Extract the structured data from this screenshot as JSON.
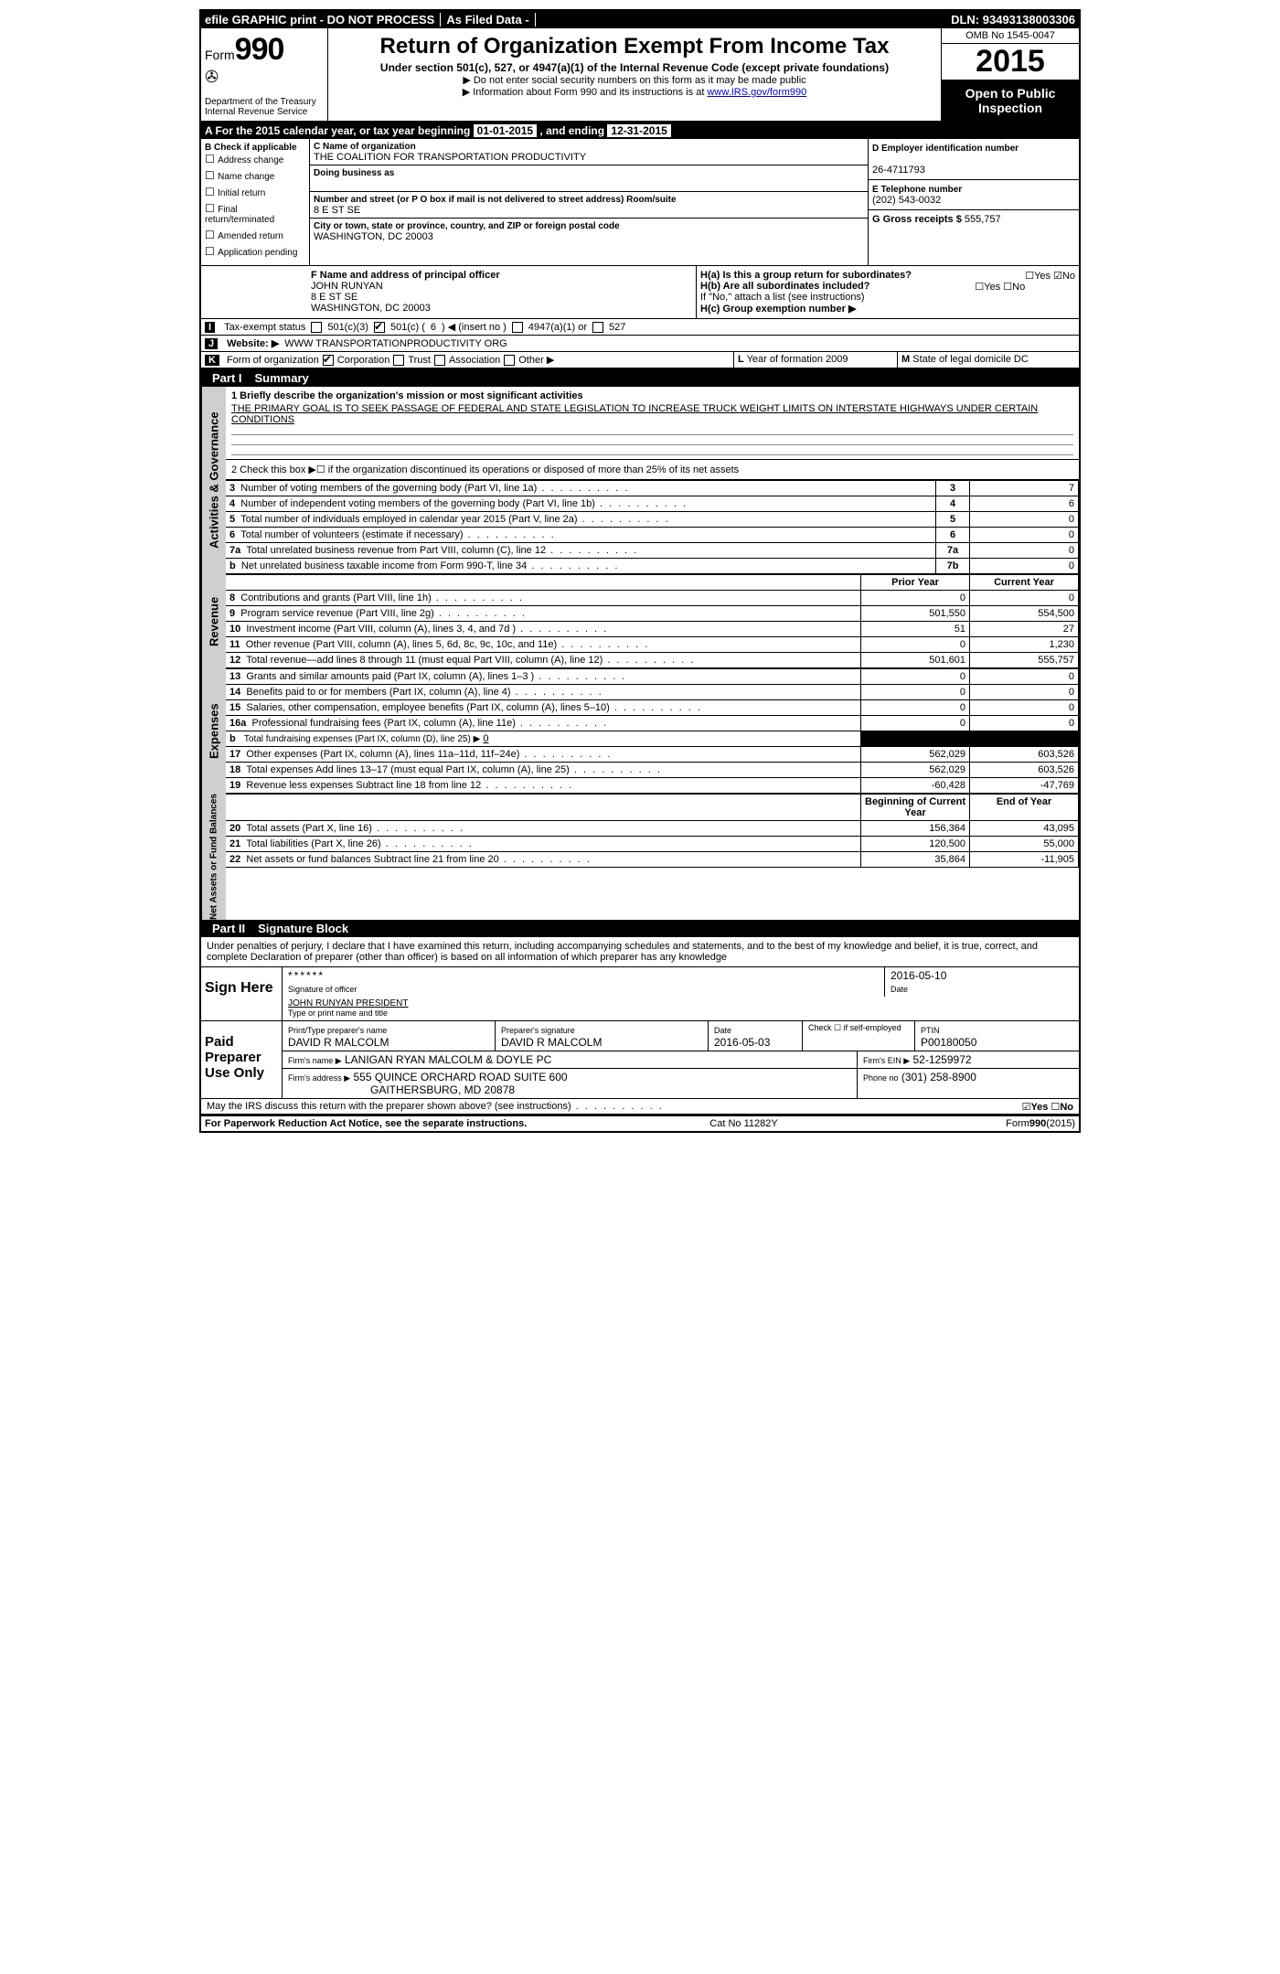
{
  "topbar": {
    "efile": "efile GRAPHIC print - DO NOT PROCESS",
    "asfiled": "As Filed Data -",
    "dln_label": "DLN:",
    "dln": "93493138003306"
  },
  "header": {
    "form_word": "Form",
    "form_no": "990",
    "dept": "Department of the Treasury",
    "irs": "Internal Revenue Service",
    "title": "Return of Organization Exempt From Income Tax",
    "subtitle": "Under section 501(c), 527, or 4947(a)(1) of the Internal Revenue Code (except private foundations)",
    "note1": "▶ Do not enter social security numbers on this form as it may be made public",
    "note2_pre": "▶ Information about Form 990 and its instructions is at ",
    "note2_link": "www.IRS.gov/form990",
    "omb": "OMB No 1545-0047",
    "year": "2015",
    "inspection": "Open to Public Inspection"
  },
  "rowA": {
    "pre": "A  For the 2015 calendar year, or tax year beginning ",
    "begin": "01-01-2015",
    "mid": " , and ending ",
    "end": "12-31-2015"
  },
  "colB": {
    "heading": "B  Check if applicable",
    "items": [
      "Address change",
      "Name change",
      "Initial return",
      "Final return/terminated",
      "Amended return",
      "Application pending"
    ]
  },
  "colC": {
    "name_lbl": "C Name of organization",
    "name": "THE COALITION FOR TRANSPORTATION PRODUCTIVITY",
    "dba_lbl": "Doing business as",
    "dba": "",
    "street_lbl": "Number and street (or P O  box if mail is not delivered to street address)   Room/suite",
    "street": "8 E ST SE",
    "city_lbl": "City or town, state or province, country, and ZIP or foreign postal code",
    "city": "WASHINGTON, DC  20003",
    "officer_lbl": "F    Name and address of principal officer",
    "officer_name": "JOHN RUNYAN",
    "officer_addr1": "8 E ST SE",
    "officer_addr2": "WASHINGTON, DC  20003"
  },
  "colDE": {
    "d_lbl": "D Employer identification number",
    "d_val": "26-4711793",
    "e_lbl": "E Telephone number",
    "e_val": "(202) 543-0032",
    "g_lbl": "G Gross receipts $",
    "g_val": "555,757"
  },
  "H": {
    "ha": "H(a)  Is this a group return for subordinates?",
    "ha_yes": "Yes",
    "ha_no": "No",
    "hb": "H(b)  Are all subordinates included?",
    "hb_yes": "Yes",
    "hb_no": "No",
    "hb_note": "If \"No,\" attach a list  (see instructions)",
    "hc": "H(c)   Group exemption number ▶"
  },
  "rowI": {
    "lead": "I",
    "label": "Tax-exempt status",
    "o1": "501(c)(3)",
    "o2_pre": "501(c) (",
    "o2_num": "6",
    "o2_post": ") ◀ (insert no )",
    "o3": "4947(a)(1) or",
    "o4": "527"
  },
  "rowJ": {
    "lead": "J",
    "label": "Website: ▶",
    "val": "WWW TRANSPORTATIONPRODUCTIVITY ORG"
  },
  "rowK": {
    "lead": "K",
    "label": "Form of organization",
    "opts": [
      "Corporation",
      "Trust",
      "Association",
      "Other ▶"
    ],
    "l_lbl": "L",
    "l_txt": "Year of formation  2009",
    "m_lbl": "M",
    "m_txt": "State of legal domicile   DC"
  },
  "part1": {
    "bar": "Part I",
    "title": "Summary"
  },
  "side": {
    "ag": "Activities & Governance",
    "rev": "Revenue",
    "exp": "Expenses",
    "nab": "Net Assets or Fund Balances"
  },
  "mission": {
    "q": "1 Briefly describe the organization's mission or most significant activities",
    "a": "THE PRIMARY GOAL IS TO SEEK PASSAGE OF FEDERAL AND STATE LEGISLATION TO INCREASE TRUCK WEIGHT LIMITS ON INTERSTATE HIGHWAYS UNDER CERTAIN CONDITIONS"
  },
  "line2": "2  Check this box ▶☐  if the organization discontinued its operations or disposed of more than 25% of its net assets",
  "govlines": [
    {
      "n": "3",
      "t": "Number of voting members of the governing body (Part VI, line 1a)",
      "k": "3",
      "v": "7"
    },
    {
      "n": "4",
      "t": "Number of independent voting members of the governing body (Part VI, line 1b)",
      "k": "4",
      "v": "6"
    },
    {
      "n": "5",
      "t": "Total number of individuals employed in calendar year 2015 (Part V, line 2a)",
      "k": "5",
      "v": "0"
    },
    {
      "n": "6",
      "t": "Total number of volunteers (estimate if necessary)",
      "k": "6",
      "v": "0"
    },
    {
      "n": "7a",
      "t": "Total unrelated business revenue from Part VIII, column (C), line 12",
      "k": "7a",
      "v": "0"
    },
    {
      "n": "b",
      "t": "Net unrelated business taxable income from Form 990-T, line 34",
      "k": "7b",
      "v": "0"
    }
  ],
  "cols": {
    "prior": "Prior Year",
    "current": "Current Year",
    "boc": "Beginning of Current Year",
    "eoy": "End of Year"
  },
  "rev": [
    {
      "n": "8",
      "t": "Contributions and grants (Part VIII, line 1h)",
      "p": "0",
      "c": "0"
    },
    {
      "n": "9",
      "t": "Program service revenue (Part VIII, line 2g)",
      "p": "501,550",
      "c": "554,500"
    },
    {
      "n": "10",
      "t": "Investment income (Part VIII, column (A), lines 3, 4, and 7d )",
      "p": "51",
      "c": "27"
    },
    {
      "n": "11",
      "t": "Other revenue (Part VIII, column (A), lines 5, 6d, 8c, 9c, 10c, and 11e)",
      "p": "0",
      "c": "1,230"
    },
    {
      "n": "12",
      "t": "Total revenue—add lines 8 through 11 (must equal Part VIII, column (A), line 12)",
      "p": "501,601",
      "c": "555,757"
    }
  ],
  "exp": [
    {
      "n": "13",
      "t": "Grants and similar amounts paid (Part IX, column (A), lines 1–3 )",
      "p": "0",
      "c": "0"
    },
    {
      "n": "14",
      "t": "Benefits paid to or for members (Part IX, column (A), line 4)",
      "p": "0",
      "c": "0"
    },
    {
      "n": "15",
      "t": "Salaries, other compensation, employee benefits (Part IX, column (A), lines 5–10)",
      "p": "0",
      "c": "0"
    },
    {
      "n": "16a",
      "t": "Professional fundraising fees (Part IX, column (A), line 11e)",
      "p": "0",
      "c": "0"
    }
  ],
  "exp_b": {
    "n": "b",
    "t": "Total fundraising expenses (Part IX, column (D), line 25) ▶",
    "v": "0"
  },
  "exp2": [
    {
      "n": "17",
      "t": "Other expenses (Part IX, column (A), lines 11a–11d, 11f–24e)",
      "p": "562,029",
      "c": "603,526"
    },
    {
      "n": "18",
      "t": "Total expenses  Add lines 13–17 (must equal Part IX, column (A), line 25)",
      "p": "562,029",
      "c": "603,526"
    },
    {
      "n": "19",
      "t": "Revenue less expenses  Subtract line 18 from line 12",
      "p": "-60,428",
      "c": "-47,769"
    }
  ],
  "nab": [
    {
      "n": "20",
      "t": "Total assets (Part X, line 16)",
      "p": "156,364",
      "c": "43,095"
    },
    {
      "n": "21",
      "t": "Total liabilities (Part X, line 26)",
      "p": "120,500",
      "c": "55,000"
    },
    {
      "n": "22",
      "t": "Net assets or fund balances  Subtract line 21 from line 20",
      "p": "35,864",
      "c": "-11,905"
    }
  ],
  "part2": {
    "bar": "Part II",
    "title": "Signature Block"
  },
  "perjury": "Under penalties of perjury, I declare that I have examined this return, including accompanying schedules and statements, and to the best of my knowledge and belief, it is true, correct, and complete  Declaration of preparer (other than officer) is based on all information of which preparer has any knowledge",
  "sign": {
    "here": "Sign Here",
    "stars": "******",
    "sig_of_officer": "Signature of officer",
    "date_lbl": "Date",
    "date": "2016-05-10",
    "name_title": "JOHN RUNYAN PRESIDENT",
    "type_lbl": "Type or print name and title"
  },
  "paid": {
    "label": "Paid Preparer Use Only",
    "pt_name_lbl": "Print/Type preparer's name",
    "pt_name": "DAVID R MALCOLM",
    "pt_sig_lbl": "Preparer's signature",
    "pt_sig": "DAVID R MALCOLM",
    "pt_date_lbl": "Date",
    "pt_date": "2016-05-03",
    "pt_self": "Check ☐ if self-employed",
    "ptin_lbl": "PTIN",
    "ptin": "P00180050",
    "firm_name_lbl": "Firm's name    ▶",
    "firm_name": "LANIGAN RYAN MALCOLM & DOYLE PC",
    "firm_ein_lbl": "Firm's EIN ▶",
    "firm_ein": "52-1259972",
    "firm_addr_lbl": "Firm's address ▶",
    "firm_addr1": "555 QUINCE ORCHARD ROAD SUITE 600",
    "firm_addr2": "GAITHERSBURG, MD  20878",
    "phone_lbl": "Phone no",
    "phone": "(301) 258-8900"
  },
  "discuss": {
    "q": "May the IRS discuss this return with the preparer shown above? (see instructions)",
    "yes": "Yes",
    "no": "No"
  },
  "footer": {
    "left": "For Paperwork Reduction Act Notice, see the separate instructions.",
    "mid": "Cat No  11282Y",
    "right": "Form 990 (2015)"
  }
}
